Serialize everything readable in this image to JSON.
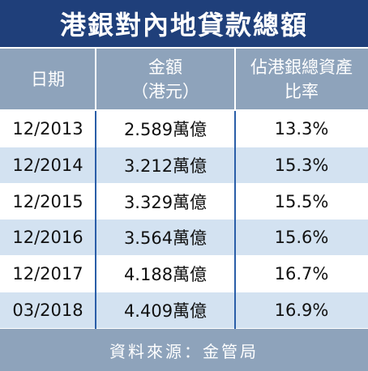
{
  "header": {
    "title": "港銀對內地貸款總額"
  },
  "table": {
    "columns": [
      [
        "日期"
      ],
      [
        "金額",
        "（港元）"
      ],
      [
        "佔港銀總資產",
        "比率"
      ]
    ],
    "rows": [
      [
        "12/2013",
        "2.589萬億",
        "13.3%"
      ],
      [
        "12/2014",
        "3.212萬億",
        "15.3%"
      ],
      [
        "12/2015",
        "3.329萬億",
        "15.5%"
      ],
      [
        "12/2016",
        "3.564萬億",
        "15.6%"
      ],
      [
        "12/2017",
        "4.188萬億",
        "16.7%"
      ],
      [
        "03/2018",
        "4.409萬億",
        "16.9%"
      ]
    ]
  },
  "footer": {
    "source": "資料來源：金管局"
  }
}
